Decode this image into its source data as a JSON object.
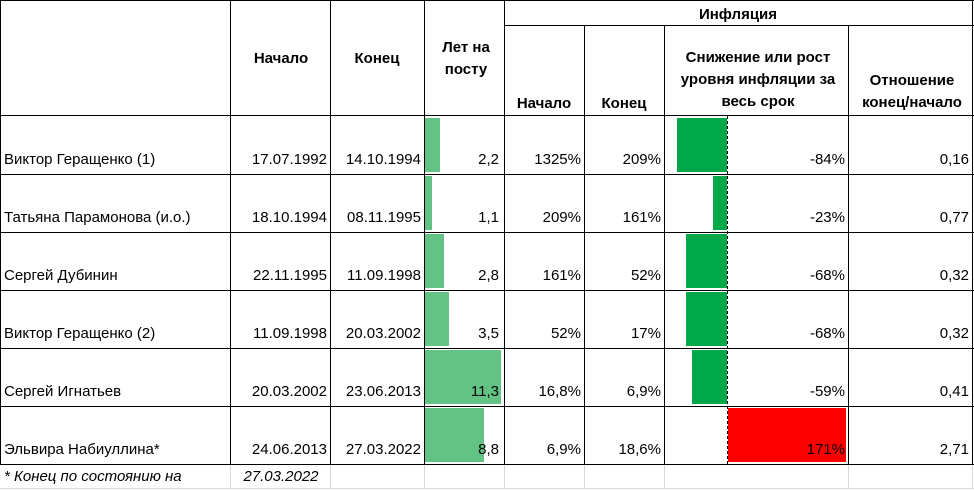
{
  "header": {
    "inflation_group": "Инфляция",
    "col_start": "Начало",
    "col_end": "Конец",
    "col_years": "Лет на посту",
    "col_infl_start": "Начало",
    "col_infl_end": "Конец",
    "col_change": "Снижение или рост уровня инфляции за весь срок",
    "col_ratio": "Отношение конец/начало"
  },
  "rows": [
    {
      "name": "Виктор Геращенко (1)",
      "start": "17.07.1992",
      "end": "14.10.1994",
      "years": "2,2",
      "years_value": 2.2,
      "infl_start": "1325%",
      "infl_end": "209%",
      "change": "-84%",
      "change_value": -84,
      "ratio": "0,16"
    },
    {
      "name": "Татьяна Парамонова (и.о.)",
      "start": "18.10.1994",
      "end": "08.11.1995",
      "years": "1,1",
      "years_value": 1.1,
      "infl_start": "209%",
      "infl_end": "161%",
      "change": "-23%",
      "change_value": -23,
      "ratio": "0,77"
    },
    {
      "name": "Сергей Дубинин",
      "start": "22.11.1995",
      "end": "11.09.1998",
      "years": "2,8",
      "years_value": 2.8,
      "infl_start": "161%",
      "infl_end": "52%",
      "change": "-68%",
      "change_value": -68,
      "ratio": "0,32"
    },
    {
      "name": "Виктор Геращенко (2)",
      "start": "11.09.1998",
      "end": "20.03.2002",
      "years": "3,5",
      "years_value": 3.5,
      "infl_start": "52%",
      "infl_end": "17%",
      "change": "-68%",
      "change_value": -68,
      "ratio": "0,32"
    },
    {
      "name": "Сергей Игнатьев",
      "start": "20.03.2002",
      "end": "23.06.2013",
      "years": "11,3",
      "years_value": 11.3,
      "infl_start": "16,8%",
      "infl_end": "6,9%",
      "change": "-59%",
      "change_value": -59,
      "ratio": "0,41"
    },
    {
      "name": "Эльвира Набиуллина*",
      "start": "24.06.2013",
      "end": "27.03.2022",
      "years": "8,8",
      "years_value": 8.8,
      "infl_start": "6,9%",
      "infl_end": "18,6%",
      "change": "171%",
      "change_value": 171,
      "ratio": "2,71"
    }
  ],
  "footer": {
    "note": "* Конец по состоянию на",
    "date": "27.03.2022"
  },
  "colors": {
    "years_bar": "#63c384",
    "decrease_bar": "#00a84a",
    "increase_bar": "#ff0000"
  }
}
